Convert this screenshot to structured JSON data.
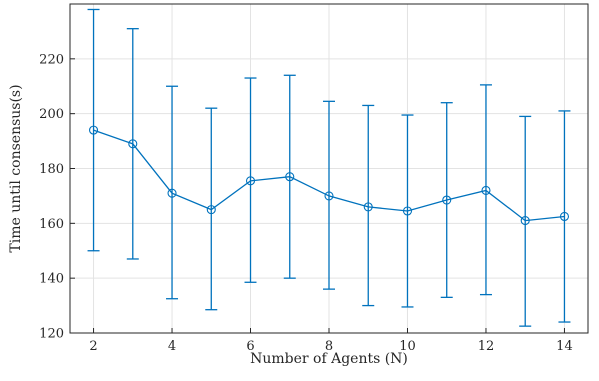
{
  "chart_data": {
    "type": "line",
    "title": "",
    "xlabel": "Number of Agents (N)",
    "ylabel": "Time until consensus(s)",
    "x": [
      2,
      3,
      4,
      5,
      6,
      7,
      8,
      9,
      10,
      11,
      12,
      13,
      14
    ],
    "series": [
      {
        "name": "",
        "values": [
          194,
          189,
          171,
          165,
          175.5,
          177,
          170,
          166,
          164.5,
          168.5,
          172,
          161,
          162.5
        ],
        "error_lower": [
          150,
          147,
          132.5,
          128.5,
          138.5,
          140,
          136,
          130,
          129.5,
          133,
          134,
          122.5,
          124
        ],
        "error_upper": [
          238,
          231,
          210,
          202,
          213,
          214,
          204.5,
          203,
          199.5,
          204,
          210.5,
          199,
          201
        ],
        "color": "#0072BD",
        "marker": "circle"
      }
    ],
    "xlim": [
      1.4,
      14.6
    ],
    "ylim": [
      120,
      240
    ],
    "xticks": [
      2,
      4,
      6,
      8,
      10,
      12,
      14
    ],
    "yticks": [
      120,
      140,
      160,
      180,
      200,
      220
    ],
    "grid": true
  }
}
